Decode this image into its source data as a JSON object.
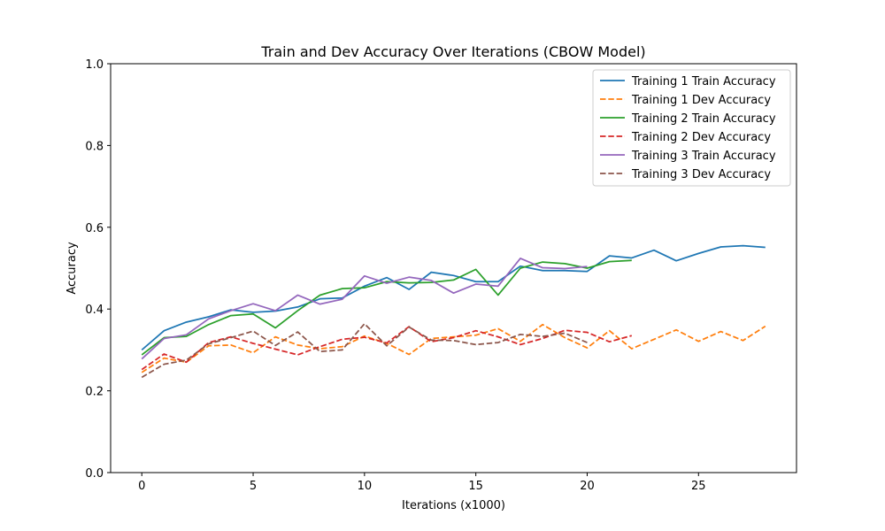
{
  "chart_data": {
    "type": "line",
    "title": "Train and Dev Accuracy Over Iterations (CBOW Model)",
    "xlabel": "Iterations (x1000)",
    "ylabel": "Accuracy",
    "xlim": [
      -1.4,
      29.4
    ],
    "ylim": [
      0.0,
      1.0
    ],
    "xticks": [
      0,
      5,
      10,
      15,
      20,
      25
    ],
    "yticks": [
      0.0,
      0.2,
      0.4,
      0.6,
      0.8,
      1.0
    ],
    "grid": false,
    "legend_position": "top-right",
    "series": [
      {
        "name": "Training 1 Train Accuracy",
        "color": "#1f77b4",
        "dash": "solid",
        "x": [
          0,
          1,
          2,
          3,
          4,
          5,
          6,
          7,
          8,
          9,
          10,
          11,
          12,
          13,
          14,
          15,
          16,
          17,
          18,
          19,
          20,
          21,
          22,
          23,
          24,
          25,
          26,
          27,
          28
        ],
        "values": [
          0.3,
          0.347,
          0.368,
          0.381,
          0.398,
          0.392,
          0.395,
          0.405,
          0.425,
          0.427,
          0.456,
          0.477,
          0.448,
          0.49,
          0.482,
          0.467,
          0.467,
          0.505,
          0.494,
          0.494,
          0.492,
          0.53,
          0.525,
          0.544,
          0.518,
          0.536,
          0.552,
          0.555,
          0.551
        ]
      },
      {
        "name": "Training 1 Dev Accuracy",
        "color": "#ff7f0e",
        "dash": "dashed",
        "x": [
          0,
          1,
          2,
          3,
          4,
          5,
          6,
          7,
          8,
          9,
          10,
          11,
          12,
          13,
          14,
          15,
          16,
          17,
          18,
          19,
          20,
          21,
          22,
          23,
          24,
          25,
          26,
          27,
          28
        ],
        "values": [
          0.245,
          0.28,
          0.27,
          0.31,
          0.312,
          0.293,
          0.332,
          0.312,
          0.303,
          0.308,
          0.334,
          0.316,
          0.289,
          0.328,
          0.332,
          0.336,
          0.352,
          0.321,
          0.362,
          0.33,
          0.305,
          0.347,
          0.303,
          0.326,
          0.349,
          0.321,
          0.345,
          0.323,
          0.358
        ]
      },
      {
        "name": "Training 2 Train Accuracy",
        "color": "#2ca02c",
        "dash": "solid",
        "x": [
          0,
          1,
          2,
          3,
          4,
          5,
          6,
          7,
          8,
          9,
          10,
          11,
          12,
          13,
          14,
          15,
          16,
          17,
          18,
          19,
          20,
          21,
          22
        ],
        "values": [
          0.288,
          0.33,
          0.333,
          0.362,
          0.384,
          0.388,
          0.354,
          0.396,
          0.434,
          0.45,
          0.452,
          0.467,
          0.464,
          0.465,
          0.471,
          0.497,
          0.434,
          0.5,
          0.515,
          0.511,
          0.5,
          0.516,
          0.519
        ]
      },
      {
        "name": "Training 2 Dev Accuracy",
        "color": "#d62728",
        "dash": "dashed",
        "x": [
          0,
          1,
          2,
          3,
          4,
          5,
          6,
          7,
          8,
          9,
          10,
          11,
          12,
          13,
          14,
          15,
          16,
          17,
          18,
          19,
          20,
          21,
          22
        ],
        "values": [
          0.252,
          0.29,
          0.27,
          0.318,
          0.332,
          0.316,
          0.302,
          0.288,
          0.308,
          0.326,
          0.331,
          0.317,
          0.357,
          0.32,
          0.33,
          0.347,
          0.332,
          0.313,
          0.328,
          0.348,
          0.343,
          0.32,
          0.335
        ]
      },
      {
        "name": "Training 3 Train Accuracy",
        "color": "#9467bd",
        "dash": "solid",
        "x": [
          0,
          1,
          2,
          3,
          4,
          5,
          6,
          7,
          8,
          9,
          10,
          11,
          12,
          13,
          14,
          15,
          16,
          17,
          18,
          19,
          20
        ],
        "values": [
          0.278,
          0.328,
          0.337,
          0.376,
          0.396,
          0.413,
          0.396,
          0.434,
          0.412,
          0.424,
          0.481,
          0.463,
          0.478,
          0.47,
          0.439,
          0.461,
          0.456,
          0.524,
          0.501,
          0.499,
          0.504
        ]
      },
      {
        "name": "Training 3 Dev Accuracy",
        "color": "#8c564b",
        "dash": "dashed",
        "x": [
          0,
          1,
          2,
          3,
          4,
          5,
          6,
          7,
          8,
          9,
          10,
          11,
          12,
          13,
          14,
          15,
          16,
          17,
          18,
          19,
          20
        ],
        "values": [
          0.233,
          0.265,
          0.275,
          0.315,
          0.33,
          0.346,
          0.311,
          0.344,
          0.296,
          0.3,
          0.364,
          0.31,
          0.356,
          0.324,
          0.323,
          0.313,
          0.318,
          0.338,
          0.333,
          0.341,
          0.318
        ]
      }
    ]
  }
}
